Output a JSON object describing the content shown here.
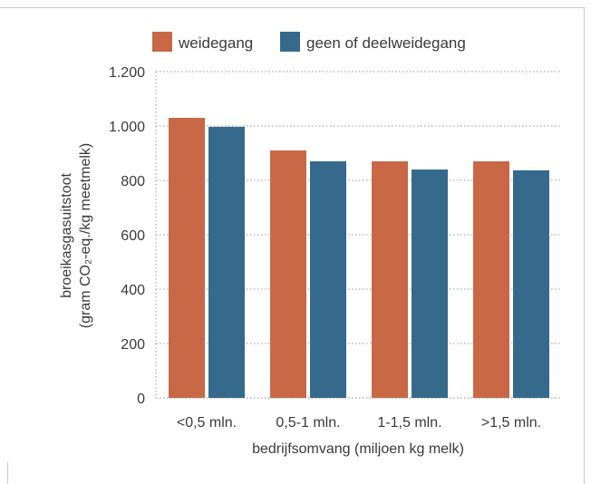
{
  "chart_data": {
    "type": "bar",
    "categories": [
      "<0,5 mln.",
      "0,5-1 mln.",
      "1-1,5 mln.",
      ">1,5 mln."
    ],
    "series": [
      {
        "name": "weidegang",
        "values": [
          1030,
          910,
          870,
          870
        ]
      },
      {
        "name": "geen of deelweidegang",
        "values": [
          997,
          870,
          840,
          837
        ]
      }
    ],
    "colors": [
      "#c96847",
      "#356a8c"
    ],
    "xlabel": "bedrijfsomvang (miljoen kg melk)",
    "ylabel_lines": [
      "broeikasgasuitstoot",
      "(gram CO₂-eq./kg meetmelk)"
    ],
    "ylim": [
      0,
      1200
    ],
    "yticks": [
      0,
      200,
      400,
      600,
      800,
      1000,
      1200
    ],
    "ytick_labels": [
      "0",
      "200",
      "400",
      "600",
      "800",
      "1.000",
      "1.200"
    ],
    "grid": "dotted horizontal",
    "legend_position": "top"
  }
}
